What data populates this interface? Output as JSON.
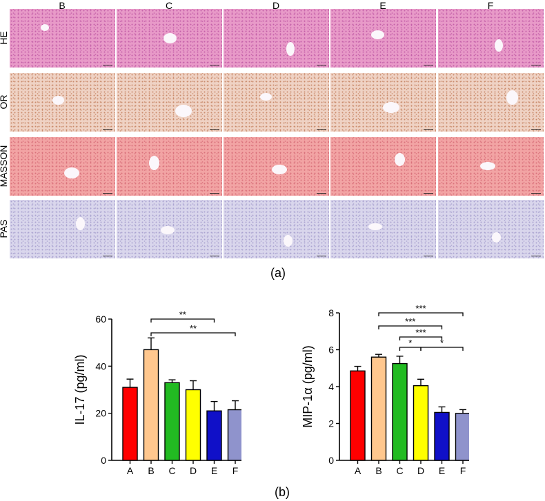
{
  "panel_a": {
    "columns": [
      "B",
      "C",
      "D",
      "E",
      "F"
    ],
    "rows": [
      {
        "label": "HE",
        "color": "#e89ac8",
        "dot": "#c45fa8"
      },
      {
        "label": "OR",
        "color": "#efd2c4",
        "dot": "#c98a6a"
      },
      {
        "label": "MASSON",
        "color": "#f2a4a4",
        "dot": "#d9707a"
      },
      {
        "label": "PAS",
        "color": "#d9d6ec",
        "dot": "#aaa3d0"
      }
    ],
    "caption": "(a)"
  },
  "panel_b": {
    "caption": "(b)"
  },
  "chart_data": [
    {
      "type": "bar",
      "categories": [
        "A",
        "B",
        "C",
        "D",
        "E",
        "F"
      ],
      "values": [
        31,
        47,
        33,
        30,
        21,
        21.5
      ],
      "errors": [
        3.5,
        5,
        1.2,
        3.8,
        4,
        3.8
      ],
      "colors": [
        "#ff0000",
        "#ffc78e",
        "#22bb22",
        "#ffff00",
        "#1010c8",
        "#8f93cc"
      ],
      "ylabel": "IL-17 (pg/ml)",
      "ylim": [
        0,
        60
      ],
      "yticks": [
        "0",
        "20",
        "40",
        "60"
      ],
      "significance": [
        {
          "from": "B",
          "to": "E",
          "label": "**"
        },
        {
          "from": "B",
          "to": "F",
          "label": "**"
        }
      ]
    },
    {
      "type": "bar",
      "categories": [
        "A",
        "B",
        "C",
        "D",
        "E",
        "F"
      ],
      "values": [
        4.85,
        5.6,
        5.25,
        4.05,
        2.6,
        2.55
      ],
      "errors": [
        0.25,
        0.15,
        0.4,
        0.35,
        0.3,
        0.2
      ],
      "colors": [
        "#ff0000",
        "#ffc78e",
        "#22bb22",
        "#ffff00",
        "#1010c8",
        "#8f93cc"
      ],
      "ylabel": "MIP-1α (pg/ml)",
      "ylim": [
        0,
        8
      ],
      "yticks": [
        "0",
        "2",
        "4",
        "6",
        "8"
      ],
      "significance": [
        {
          "from": "B",
          "to": "F",
          "label": "***"
        },
        {
          "from": "B",
          "to": "E",
          "label": "***"
        },
        {
          "from": "C",
          "to": "E",
          "label": "***"
        },
        {
          "from": "C",
          "to": "D",
          "label": "*"
        },
        {
          "from": "D",
          "to": "F",
          "label": "*"
        }
      ]
    }
  ]
}
